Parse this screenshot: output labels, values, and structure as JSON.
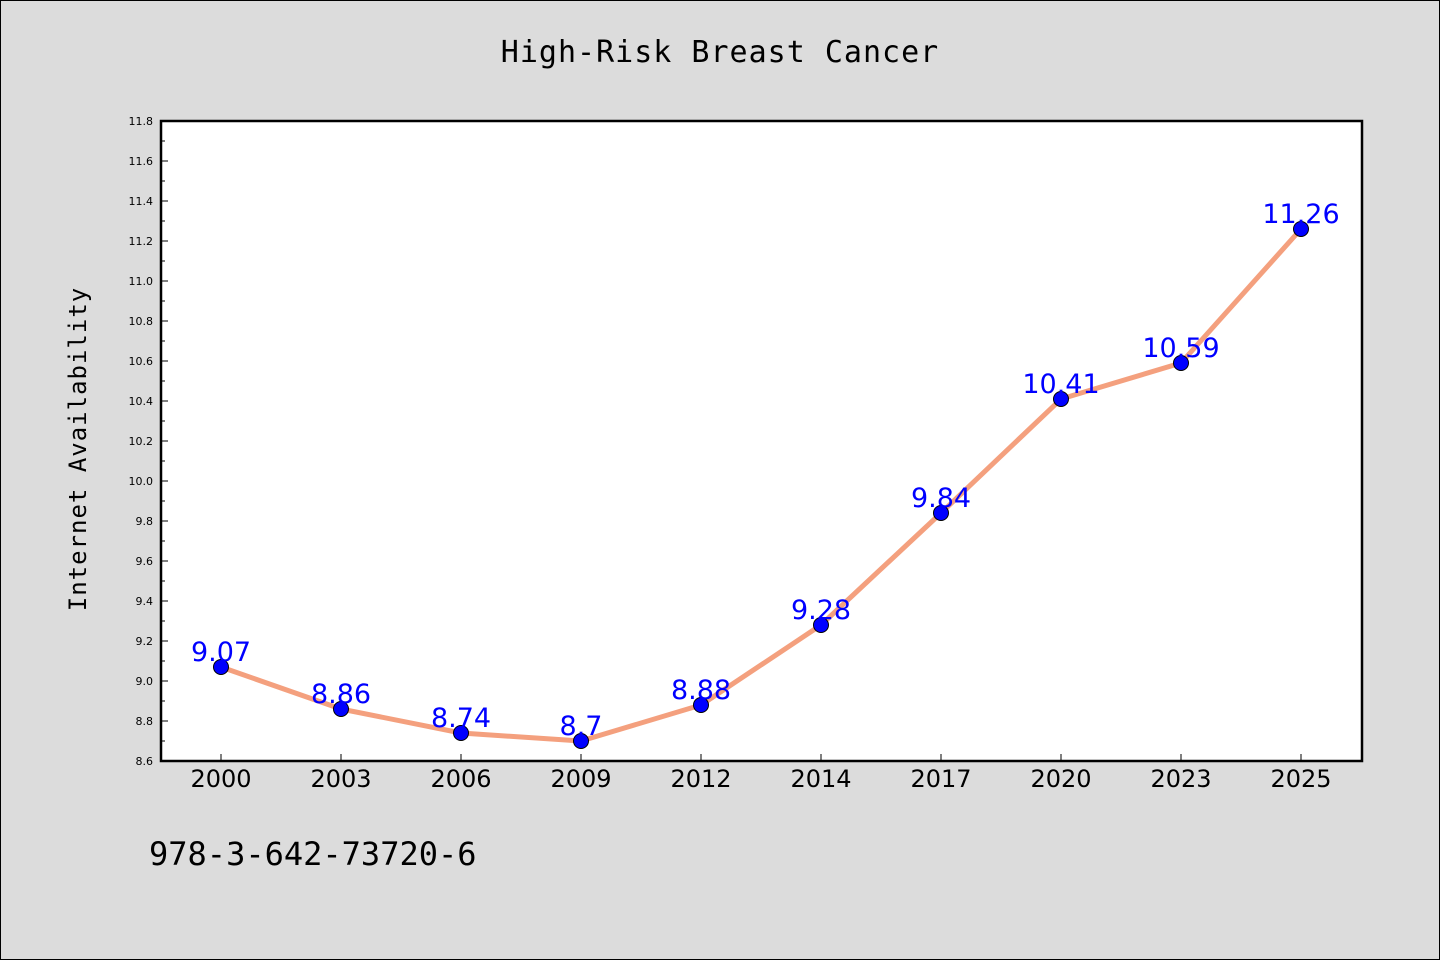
{
  "chart_data": {
    "type": "line",
    "title": "High-Risk Breast Cancer",
    "xlabel": "",
    "ylabel": "Internet Availability",
    "categories": [
      "2000",
      "2003",
      "2006",
      "2009",
      "2012",
      "2014",
      "2017",
      "2020",
      "2023",
      "2025"
    ],
    "values": [
      9.07,
      8.86,
      8.74,
      8.7,
      8.88,
      9.28,
      9.84,
      10.41,
      10.59,
      11.26
    ],
    "data_labels": [
      "9.07",
      "8.86",
      "8.74",
      "8.7",
      "8.88",
      "9.28",
      "9.84",
      "10.41",
      "10.59",
      "11.26"
    ],
    "ylim": [
      8.6,
      11.8
    ],
    "yticks": [
      "8.6",
      "8.8",
      "9.0",
      "9.2",
      "9.4",
      "9.6",
      "9.8",
      "10.0",
      "10.2",
      "10.4",
      "10.6",
      "10.8",
      "11.0",
      "11.2",
      "11.4",
      "11.6",
      "11.8"
    ],
    "grid": false,
    "line_color": "#f4a07e",
    "marker_color": "#0000ff",
    "label_color": "#0000ff"
  },
  "footnote": "978-3-642-73720-6"
}
